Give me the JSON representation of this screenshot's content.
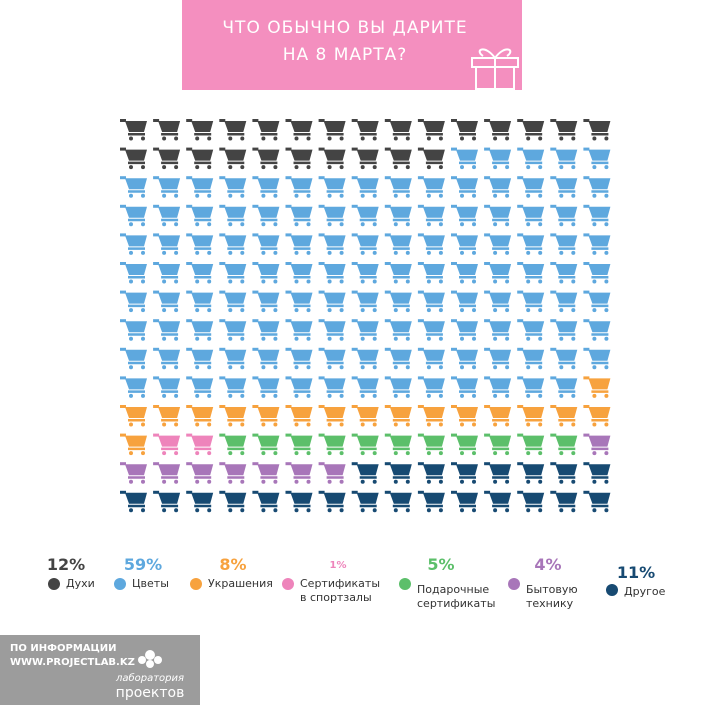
{
  "chart_data": {
    "type": "waffle",
    "title": [
      "ЧТО ОБЫЧНО ВЫ ДАРИТЕ",
      "НА 8 МАРТА?"
    ],
    "rows": 14,
    "columns": 15,
    "categories": [
      "Духи",
      "Цветы",
      "Украшения",
      "Сертификаты в спортзалы",
      "Подарочные сертификаты",
      "Бытовую технику",
      "Другое"
    ],
    "values": [
      12,
      59,
      8,
      1,
      5,
      4,
      11
    ],
    "value_labels": [
      "12%",
      "59%",
      "8%",
      "1%",
      "5%",
      "4%",
      "11%"
    ],
    "colors": [
      "#444444",
      "#5ea8de",
      "#f7a23e",
      "#ee84bb",
      "#5cbf6a",
      "#a876b9",
      "#174a72"
    ]
  },
  "footer": {
    "source": [
      "ПО ИНФОРМАЦИИ",
      "WWW.PROJECTLAB.KZ"
    ],
    "logo": [
      "лаборатория",
      "проектов"
    ]
  }
}
